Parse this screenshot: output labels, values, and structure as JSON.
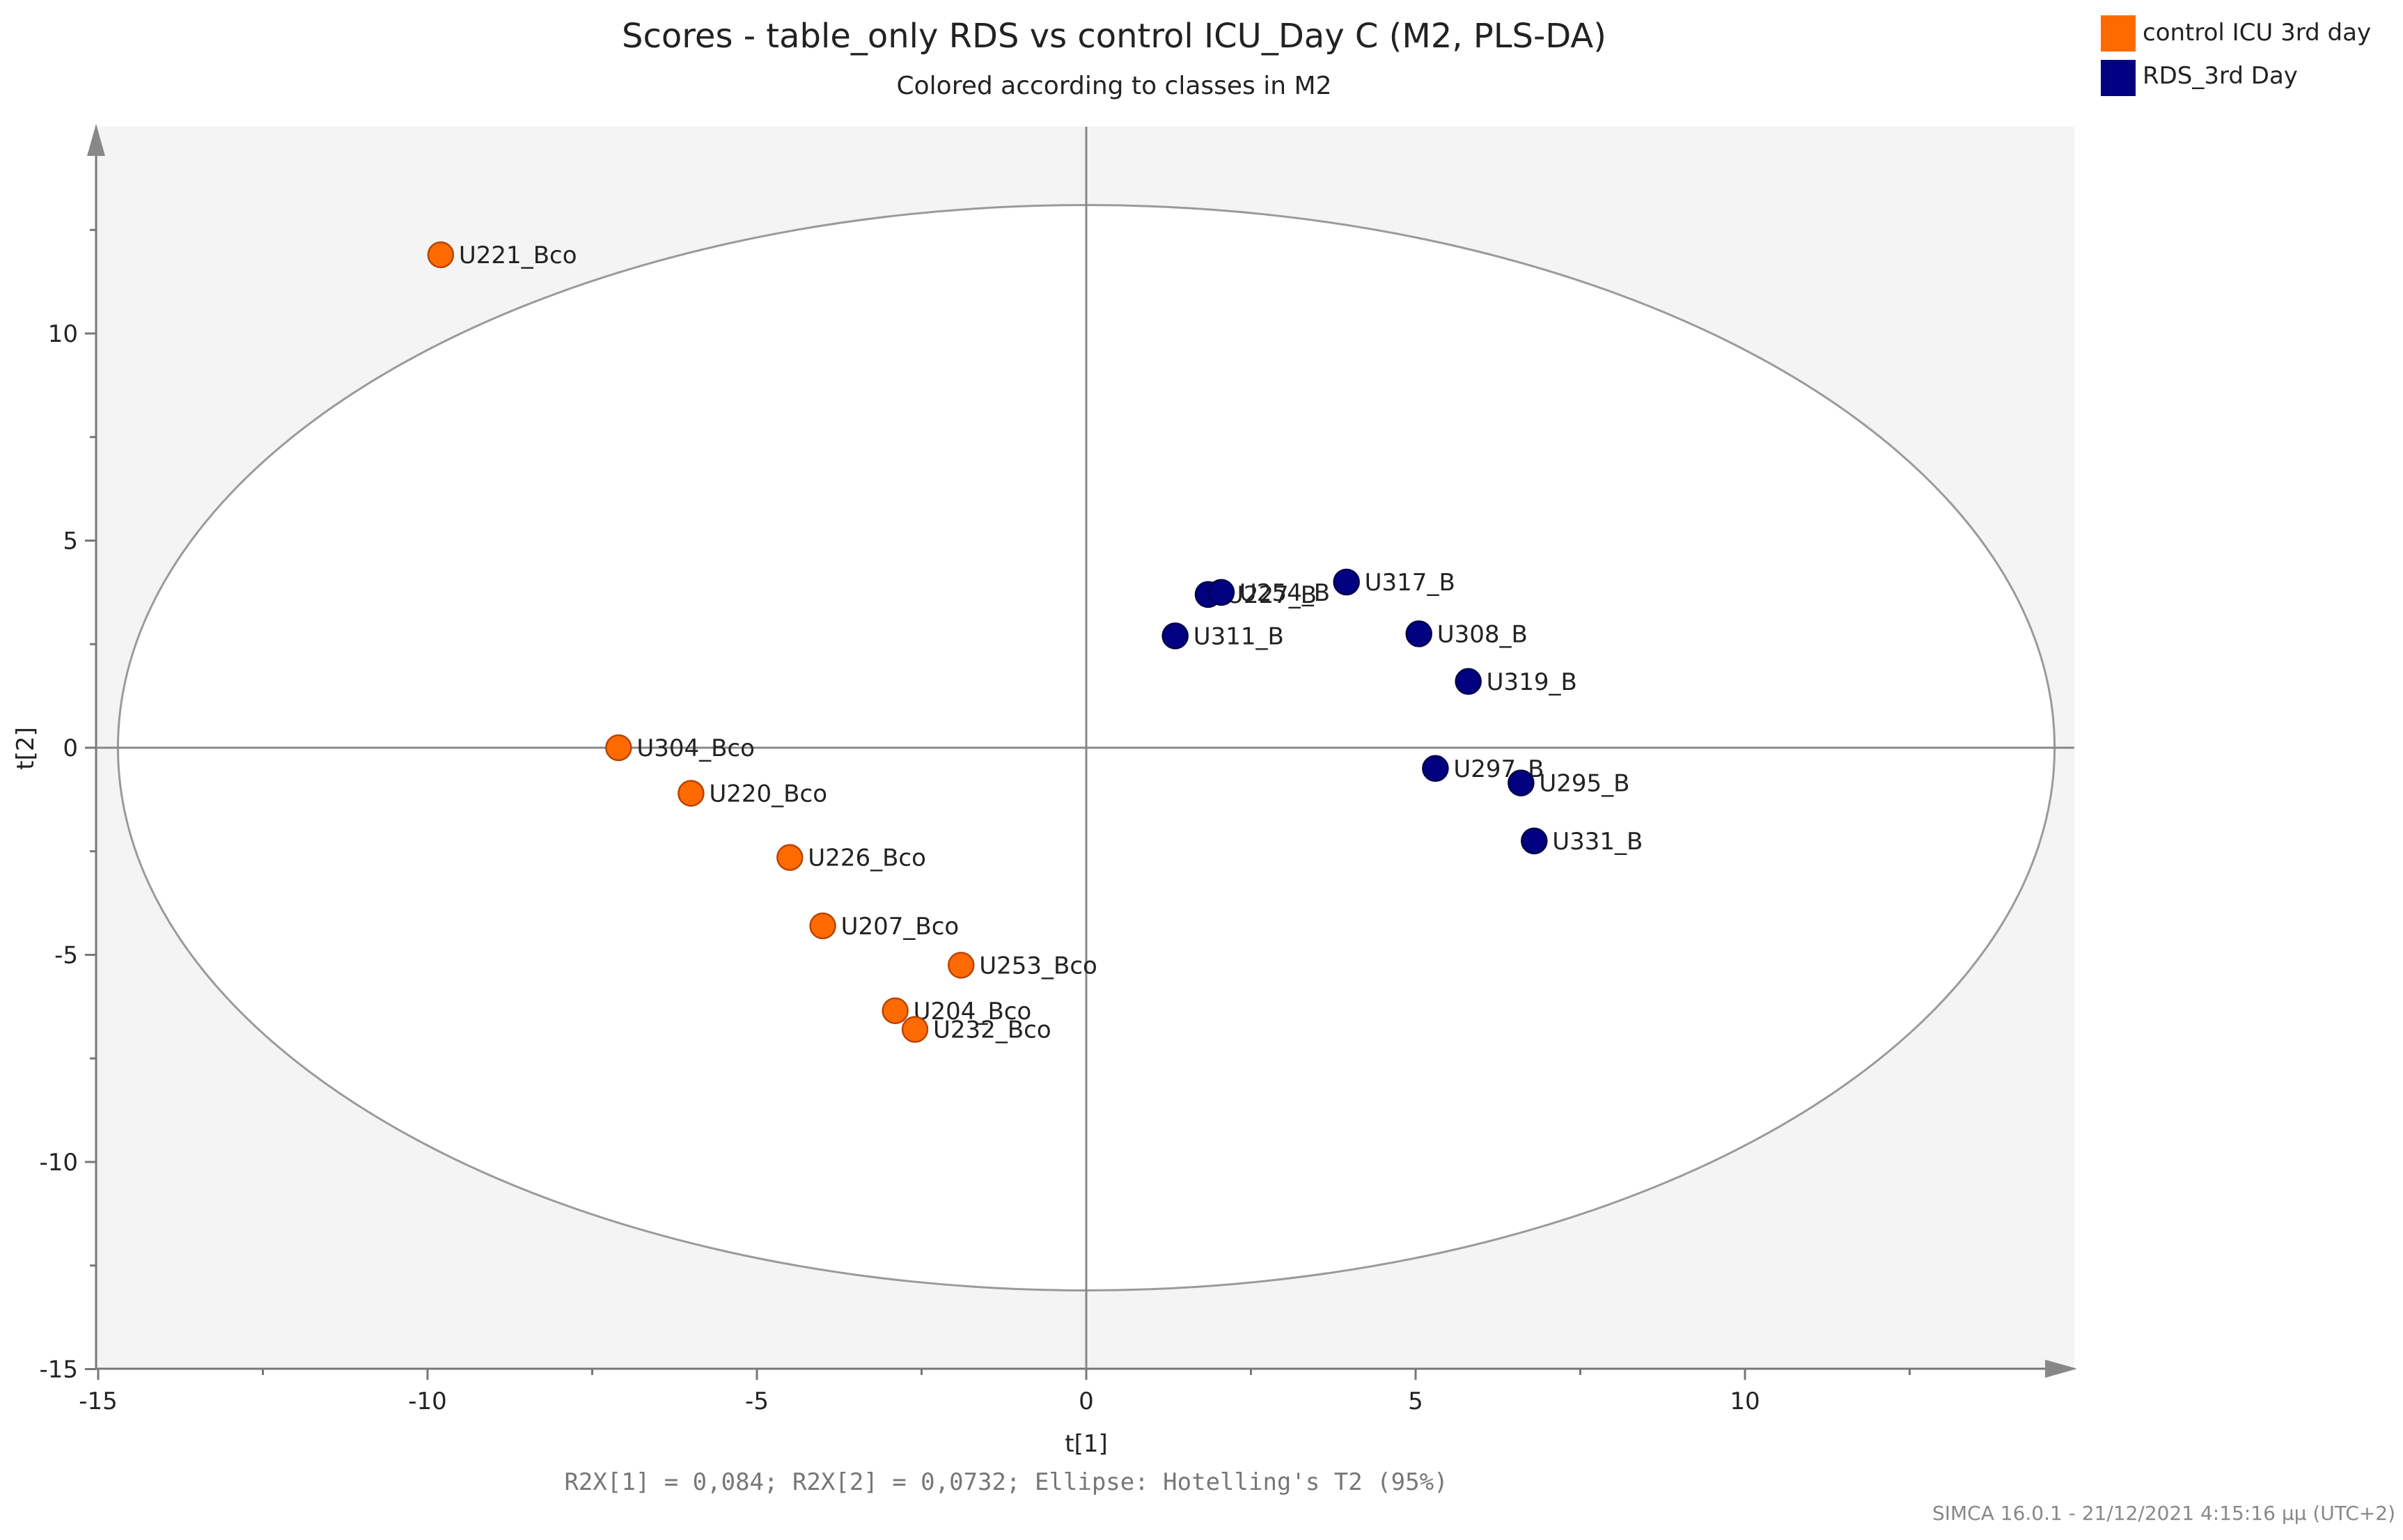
{
  "chart_data": {
    "type": "scatter",
    "title": "Scores - table_only RDS vs control ICU_Day C (M2, PLS-DA)",
    "subtitle": "Colored according to classes in M2",
    "xlabel": "t[1]",
    "ylabel": "t[2]",
    "xlim": [
      -15,
      14.5
    ],
    "ylim": [
      -15,
      15
    ],
    "xticks": [
      -15,
      -10,
      -5,
      0,
      5,
      10
    ],
    "yticks": [
      10,
      5,
      0,
      -5,
      -10,
      -15
    ],
    "tick_labels_x": [
      "-15",
      "-10",
      "-5",
      "0",
      "5",
      "10"
    ],
    "tick_labels_y": [
      "10",
      "5",
      "0",
      "-5",
      "-10",
      "-15"
    ],
    "grid": false,
    "legend_position": "top-right",
    "ellipse": {
      "semi_axis_x": 14.7,
      "semi_axis_y": 13.1,
      "label": "Hotelling's T2 (95%)"
    },
    "series": [
      {
        "name": "control ICU 3rd day",
        "color": "#ff6a00",
        "points": [
          {
            "label": "U221_Bco",
            "x": -9.8,
            "y": 11.9
          },
          {
            "label": "U304_Bco",
            "x": -7.1,
            "y": 0.0
          },
          {
            "label": "U220_Bco",
            "x": -6.0,
            "y": -1.1
          },
          {
            "label": "U226_Bco",
            "x": -4.5,
            "y": -2.65
          },
          {
            "label": "U207_Bco",
            "x": -4.0,
            "y": -4.3
          },
          {
            "label": "U253_Bco",
            "x": -1.9,
            "y": -5.25
          },
          {
            "label": "U204_Bco",
            "x": -2.9,
            "y": -6.35
          },
          {
            "label": "U232_Bco",
            "x": -2.6,
            "y": -6.8
          }
        ]
      },
      {
        "name": "RDS_3rd Day",
        "color": "#000080",
        "points": [
          {
            "label": "U227_B",
            "x": 1.85,
            "y": 3.7
          },
          {
            "label": "U254_B",
            "x": 2.05,
            "y": 3.75
          },
          {
            "label": "U317_B",
            "x": 3.95,
            "y": 4.0
          },
          {
            "label": "U311_B",
            "x": 1.35,
            "y": 2.7
          },
          {
            "label": "U308_B",
            "x": 5.05,
            "y": 2.75
          },
          {
            "label": "U319_B",
            "x": 5.8,
            "y": 1.6
          },
          {
            "label": "U297_B",
            "x": 5.3,
            "y": -0.5
          },
          {
            "label": "U295_B",
            "x": 6.6,
            "y": -0.85
          },
          {
            "label": "U331_B",
            "x": 6.8,
            "y": -2.25
          }
        ]
      }
    ]
  },
  "footer": {
    "stats": "R2X[1] = 0,084; R2X[2] = 0,0732; Ellipse: Hotelling's T2 (95%)",
    "software": "SIMCA 16.0.1 - 21/12/2021 4:15:16 μμ (UTC+2)"
  }
}
